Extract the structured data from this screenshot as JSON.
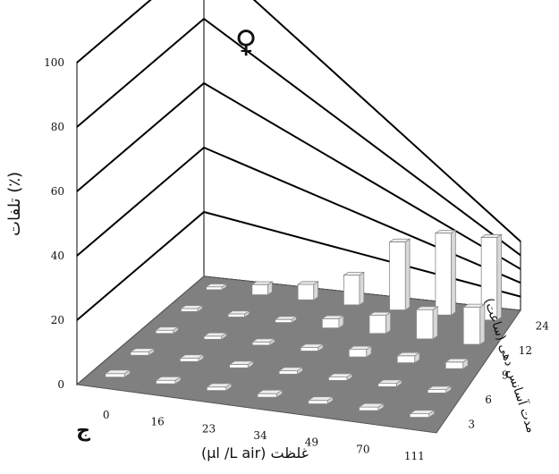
{
  "chart_data": {
    "type": "bar",
    "title": "",
    "panel_letter": "ج",
    "sex_symbol": "♀",
    "ylabel": "تلفات (٪)",
    "xlabel": "(µl /L air) غلظت",
    "zlabel": "مدت آسانس دهی (ساعت)",
    "y_ticks": [
      "0",
      "20",
      "40",
      "60",
      "80",
      "100"
    ],
    "ylim": [
      0,
      100
    ],
    "categories": [
      "0",
      "16",
      "23",
      "34",
      "49",
      "70",
      "111"
    ],
    "z_categories": [
      "3",
      "6",
      "9",
      "12",
      "24"
    ],
    "series": [
      {
        "name": "3",
        "values": [
          0,
          0,
          0,
          0,
          0,
          0,
          0
        ]
      },
      {
        "name": "6",
        "values": [
          0,
          0,
          0,
          0,
          0,
          0,
          0
        ]
      },
      {
        "name": "9",
        "values": [
          0,
          0,
          0,
          2,
          5,
          6,
          8
        ]
      },
      {
        "name": "12",
        "values": [
          0,
          0,
          0,
          5,
          12,
          25,
          45
        ]
      },
      {
        "name": "24",
        "values": [
          0,
          4,
          7,
          16,
          45,
          70,
          100
        ]
      }
    ],
    "colors": {
      "floor": "#808080",
      "bar_face": "#ffffff",
      "bar_side": "#d8d8d8",
      "bar_top": "#ececec",
      "wall": "#ffffff",
      "grid": "#000000"
    }
  }
}
